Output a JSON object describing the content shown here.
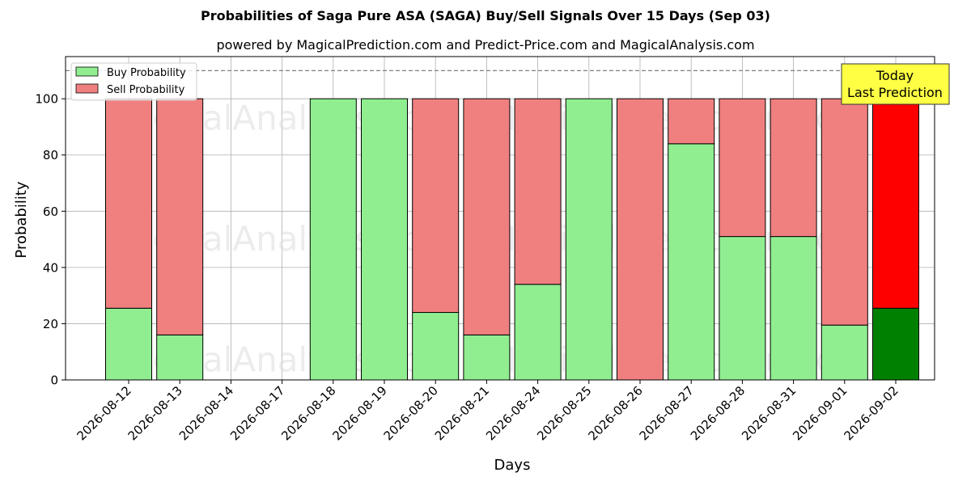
{
  "title": "Probabilities of Saga Pure ASA (SAGA) Buy/Sell Signals Over 15 Days (Sep 03)",
  "subtitle": "powered by MagicalPrediction.com and Predict-Price.com and MagicalAnalysis.com",
  "watermarks": [
    "MagicalAnalysis.com",
    "MagicalPrediction.com"
  ],
  "annotation": {
    "line1": "Today",
    "line2": "Last Prediction",
    "color": "#ffff44"
  },
  "colors": {
    "buy": "#90ee90",
    "sell": "#f08080",
    "buy_today": "#008000",
    "sell_today": "#ff0000"
  },
  "chart_data": {
    "type": "bar",
    "stacked": true,
    "xlabel": "Days",
    "ylabel": "Probability",
    "ylim": [
      0,
      115
    ],
    "yticks": [
      0,
      20,
      40,
      60,
      80,
      100
    ],
    "reference_line": 110,
    "grid": true,
    "legend_position": "top-left",
    "categories": [
      "2026-08-12",
      "2026-08-13",
      "2026-08-14",
      "2026-08-17",
      "2026-08-18",
      "2026-08-19",
      "2026-08-20",
      "2026-08-21",
      "2026-08-24",
      "2026-08-25",
      "2026-08-26",
      "2026-08-27",
      "2026-08-28",
      "2026-08-31",
      "2026-09-01",
      "2026-09-02"
    ],
    "series": [
      {
        "name": "Buy Probability",
        "values": [
          25.5,
          16,
          null,
          null,
          100,
          100,
          24,
          16,
          34,
          100,
          0,
          84,
          51,
          51,
          19.5,
          25.5
        ]
      },
      {
        "name": "Sell Probability",
        "values": [
          74.5,
          84,
          null,
          null,
          0,
          0,
          76,
          84,
          66,
          0,
          100,
          16,
          49,
          49,
          80.5,
          74.5
        ]
      }
    ]
  }
}
